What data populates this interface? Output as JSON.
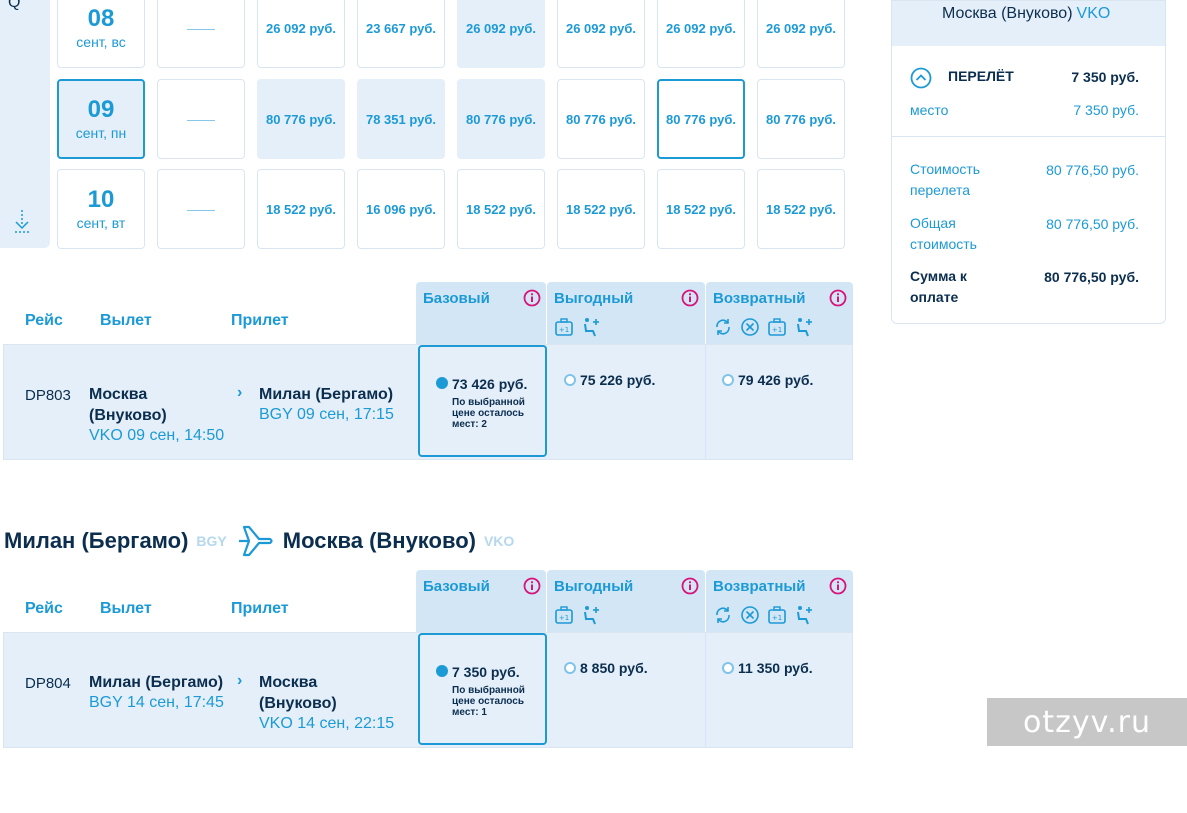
{
  "calendar": {
    "rows": [
      {
        "day": "08",
        "weekday": "сент, вс",
        "dash": "——",
        "prices": [
          "26 092 руб.",
          "23 667 руб.",
          "26 092 руб.",
          "26 092 руб.",
          "26 092 руб.",
          "26 092 руб."
        ]
      },
      {
        "day": "09",
        "weekday": "сент, пн",
        "dash": "——",
        "prices": [
          "80 776 руб.",
          "78 351 руб.",
          "80 776 руб.",
          "80 776 руб.",
          "80 776 руб.",
          "80 776 руб."
        ]
      },
      {
        "day": "10",
        "weekday": "сент, вт",
        "dash": "——",
        "prices": [
          "18 522 руб.",
          "16 096 руб.",
          "18 522 руб.",
          "18 522 руб.",
          "18 522 руб.",
          "18 522 руб."
        ]
      }
    ]
  },
  "summary": {
    "route": "Москва (Внуково)",
    "route_code": "VKO",
    "flight_label": "ПЕРЕЛЁТ",
    "flight_price": "7 350 руб.",
    "seat_label": "место",
    "seat_price": "7 350 руб.",
    "fare_cost_label_1": "Стоимость",
    "fare_cost_label_2": "перелета",
    "fare_cost": "80 776,50 руб.",
    "total_label_1": "Общая",
    "total_label_2": "стоимость",
    "total": "80 776,50 руб.",
    "pay_label_1": "Сумма к",
    "pay_label_2": "оплате",
    "pay": "80 776,50 руб."
  },
  "table_headers": {
    "flight": "Рейс",
    "departure": "Вылет",
    "arrival": "Прилет"
  },
  "fares": {
    "basic": "Базовый",
    "profit": "Выгодный",
    "return": "Возвратный"
  },
  "outbound": {
    "flight_no": "DP803",
    "from_line1": "Москва",
    "from_line2": "(Внуково)",
    "from_sub": "VKO 09 сен, 14:50",
    "to_line1": "Милан (Бергамо)",
    "to_sub": "BGY 09 сен, 17:15",
    "basic_price": "73 426 руб.",
    "note_1": "По выбранной",
    "note_2": "цене осталось",
    "note_3": "мест: 2",
    "profit_price": "75 226 руб.",
    "return_price": "79 426 руб."
  },
  "return_route": {
    "from": "Милан (Бергамо)",
    "from_code": "BGY",
    "to": "Москва (Внуково)",
    "to_code": "VKO"
  },
  "inbound": {
    "flight_no": "DP804",
    "from_line1": "Милан (Бергамо)",
    "from_sub": "BGY 14 сен, 17:45",
    "to_line1": "Москва",
    "to_line2": "(Внуково)",
    "to_sub": "VKO 14 сен, 22:15",
    "basic_price": "7 350 руб.",
    "note_1": "По выбранной",
    "note_2": "цене осталось",
    "note_3": "мест: 1",
    "profit_price": "8 850 руб.",
    "return_price": "11 350 руб."
  },
  "watermark": "otzyv.ru"
}
